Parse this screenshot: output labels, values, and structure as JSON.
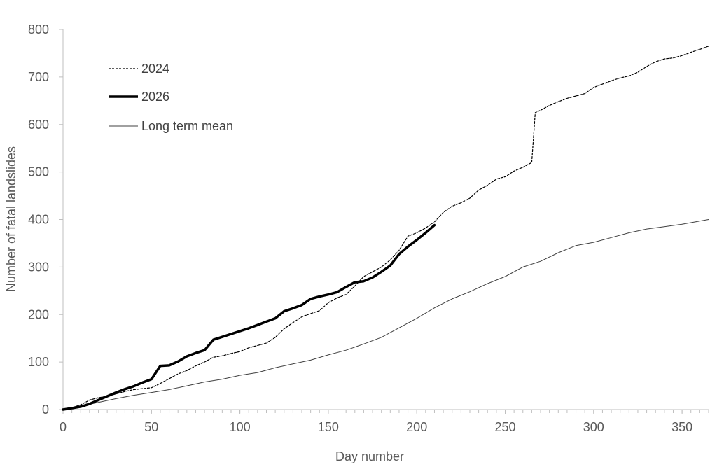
{
  "chart_data": {
    "type": "line",
    "title": "",
    "xlabel": "Day number",
    "ylabel": "Number of fatal landslides",
    "xlim": [
      0,
      365
    ],
    "ylim": [
      0,
      800
    ],
    "xticks": [
      0,
      50,
      100,
      150,
      200,
      250,
      300,
      350
    ],
    "yticks": [
      0,
      100,
      200,
      300,
      400,
      500,
      600,
      700,
      800
    ],
    "grid": false,
    "legend_position": "top-left",
    "series": [
      {
        "name": "2024",
        "style": "dashed",
        "color": "#000000",
        "x": [
          0,
          5,
          10,
          15,
          20,
          25,
          30,
          35,
          40,
          45,
          50,
          55,
          60,
          65,
          70,
          75,
          80,
          85,
          90,
          95,
          100,
          105,
          110,
          115,
          120,
          125,
          130,
          135,
          140,
          145,
          150,
          155,
          160,
          165,
          170,
          175,
          180,
          185,
          190,
          195,
          200,
          205,
          210,
          215,
          220,
          225,
          230,
          235,
          240,
          245,
          250,
          255,
          260,
          265,
          267,
          270,
          275,
          280,
          285,
          290,
          295,
          300,
          305,
          310,
          315,
          320,
          325,
          330,
          335,
          340,
          345,
          350,
          355,
          360,
          365
        ],
        "y": [
          0,
          4,
          10,
          20,
          25,
          28,
          33,
          38,
          42,
          44,
          46,
          55,
          65,
          75,
          82,
          92,
          100,
          110,
          113,
          118,
          122,
          130,
          135,
          140,
          152,
          170,
          183,
          195,
          202,
          208,
          225,
          235,
          242,
          260,
          280,
          290,
          300,
          315,
          335,
          365,
          372,
          382,
          395,
          415,
          428,
          435,
          445,
          462,
          472,
          485,
          490,
          502,
          510,
          520,
          625,
          630,
          640,
          648,
          655,
          660,
          665,
          678,
          685,
          692,
          698,
          702,
          710,
          722,
          732,
          738,
          740,
          745,
          752,
          758,
          765
        ]
      },
      {
        "name": "2026",
        "style": "solid-bold",
        "color": "#000000",
        "x": [
          0,
          5,
          10,
          15,
          20,
          25,
          30,
          35,
          40,
          45,
          50,
          55,
          60,
          65,
          70,
          75,
          80,
          85,
          90,
          95,
          100,
          105,
          110,
          115,
          120,
          125,
          130,
          135,
          140,
          145,
          150,
          155,
          160,
          165,
          170,
          175,
          180,
          185,
          190,
          195,
          200,
          205,
          210
        ],
        "y": [
          0,
          3,
          6,
          12,
          20,
          28,
          36,
          43,
          49,
          57,
          64,
          92,
          93,
          101,
          112,
          119,
          125,
          147,
          153,
          159,
          165,
          171,
          178,
          185,
          192,
          207,
          213,
          220,
          233,
          238,
          242,
          247,
          258,
          268,
          270,
          278,
          290,
          303,
          327,
          343,
          357,
          372,
          388
        ]
      },
      {
        "name": "Long term mean",
        "style": "solid-thin",
        "color": "#404040",
        "x": [
          0,
          10,
          20,
          30,
          40,
          50,
          60,
          70,
          80,
          90,
          100,
          110,
          120,
          130,
          140,
          150,
          160,
          170,
          180,
          190,
          200,
          210,
          220,
          230,
          240,
          250,
          260,
          270,
          280,
          290,
          300,
          310,
          320,
          330,
          340,
          350,
          365
        ],
        "y": [
          0,
          7,
          15,
          23,
          30,
          36,
          42,
          50,
          58,
          64,
          72,
          78,
          88,
          96,
          104,
          115,
          125,
          138,
          152,
          172,
          192,
          214,
          233,
          248,
          265,
          280,
          300,
          312,
          330,
          345,
          352,
          362,
          372,
          380,
          385,
          390,
          400
        ]
      }
    ]
  }
}
